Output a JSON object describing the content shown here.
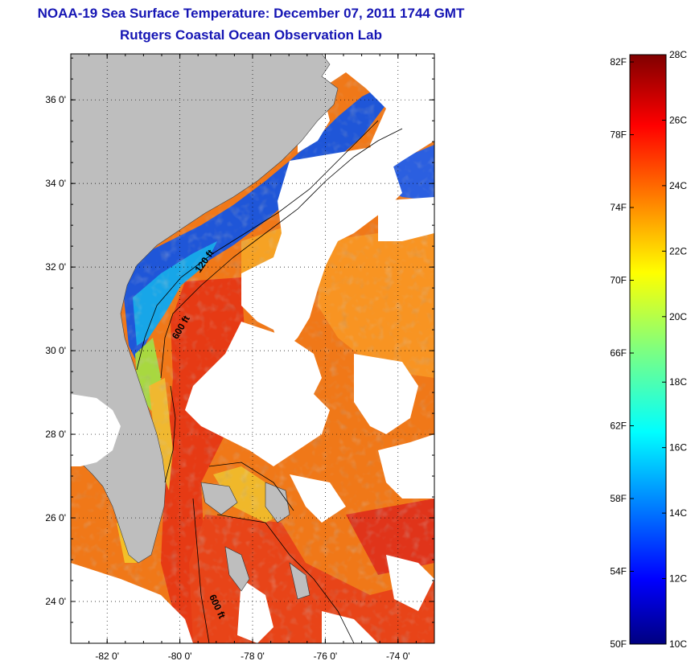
{
  "header": {
    "title": "NOAA-19 Sea Surface Temperature:  December 07, 2011 1744 GMT",
    "subtitle": "Rutgers Coastal Ocean Observation Lab"
  },
  "map": {
    "lat_ticks": [
      "36 0'",
      "34 0'",
      "32 0'",
      "30 0'",
      "28 0'",
      "26 0'",
      "24 0'"
    ],
    "lon_ticks": [
      "-82 0'",
      "-80 0'",
      "-78 0'",
      "-76 0'",
      "-74 0'"
    ],
    "lat_range": [
      23,
      37.1
    ],
    "lon_range": [
      -83,
      -73
    ],
    "contours": {
      "shallow": "120 ft",
      "deep_north": "600 ft",
      "deep_south": "600 ft"
    },
    "colors": {
      "land": "#bebebe",
      "cloud": "#ffffff",
      "frame": "#000000"
    }
  },
  "colorbar": {
    "fahrenheit": [
      "82F",
      "78F",
      "74F",
      "70F",
      "66F",
      "62F",
      "58F",
      "54F",
      "50F"
    ],
    "celsius": [
      "28C",
      "26C",
      "24C",
      "22C",
      "20C",
      "18C",
      "16C",
      "14C",
      "12C",
      "10C"
    ],
    "range_c": [
      10,
      28
    ],
    "range_f": [
      50,
      82.4
    ]
  }
}
